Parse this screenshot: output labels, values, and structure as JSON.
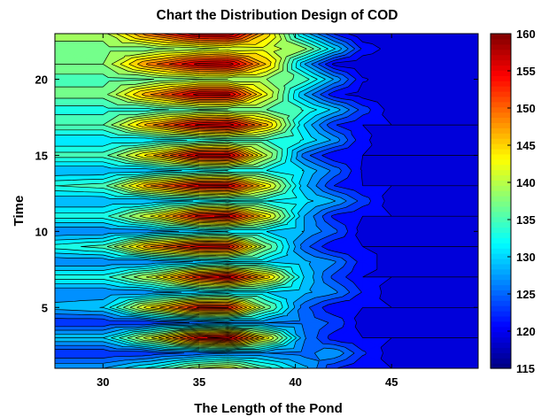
{
  "chart_data": {
    "type": "heatmap",
    "subtype": "filled-contour",
    "title": "Chart the Distribution Design of COD",
    "xlabel": "The Length of the Pond",
    "ylabel": "Time",
    "xlim": [
      27.5,
      49.5
    ],
    "ylim": [
      1,
      23
    ],
    "xticks": [
      30,
      35,
      40,
      45
    ],
    "yticks": [
      5,
      10,
      15,
      20
    ],
    "colorbar": {
      "range": [
        115,
        160
      ],
      "ticks": [
        115,
        120,
        125,
        130,
        135,
        140,
        145,
        150,
        155,
        160
      ],
      "colormap": "jet"
    },
    "contour_levels": [
      116,
      118,
      120,
      122,
      124,
      126,
      128,
      130,
      132,
      134,
      136,
      138,
      140,
      142,
      144,
      146,
      148,
      150,
      152,
      154,
      156,
      158
    ],
    "grid": false,
    "x": [
      27.5,
      30,
      32.5,
      35,
      36.5,
      38.5,
      40.5,
      42,
      43.5,
      45,
      46.5,
      48,
      49.5
    ],
    "y": [
      1,
      2,
      3,
      4,
      5,
      6,
      7,
      8,
      9,
      10,
      11,
      12,
      13,
      14,
      15,
      16,
      17,
      18,
      19,
      20,
      21,
      22,
      23
    ],
    "z": [
      [
        128,
        130,
        133,
        136,
        140,
        143,
        140,
        136,
        132,
        130,
        126,
        122,
        120
      ],
      [
        122,
        123,
        124,
        125,
        126,
        126,
        126,
        125,
        125,
        128,
        125,
        121,
        119
      ],
      [
        130,
        136,
        145,
        152,
        156,
        158,
        155,
        146,
        136,
        129,
        125,
        122,
        120
      ],
      [
        122,
        123,
        124,
        125,
        126,
        126,
        126,
        125,
        125,
        126,
        124,
        121,
        119
      ],
      [
        129,
        134,
        142,
        150,
        154,
        156,
        153,
        144,
        135,
        129,
        125,
        122,
        120
      ],
      [
        126,
        127,
        128,
        129,
        130,
        130,
        130,
        129,
        128,
        127,
        125,
        121,
        119
      ],
      [
        133,
        138,
        146,
        152,
        155,
        157,
        154,
        145,
        136,
        130,
        126,
        122,
        120
      ],
      [
        126,
        127,
        128,
        129,
        130,
        130,
        130,
        129,
        128,
        127,
        125,
        121,
        119
      ],
      [
        133,
        138,
        146,
        152,
        155,
        156,
        154,
        145,
        136,
        130,
        126,
        122,
        120
      ],
      [
        126,
        127,
        128,
        129,
        130,
        130,
        130,
        129,
        128,
        127,
        125,
        121,
        119
      ],
      [
        133,
        139,
        147,
        153,
        156,
        157,
        155,
        146,
        137,
        130,
        126,
        122,
        120
      ],
      [
        128,
        129,
        130,
        131,
        132,
        132,
        132,
        131,
        130,
        128,
        125,
        121,
        119
      ],
      [
        134,
        139,
        147,
        153,
        156,
        157,
        155,
        146,
        137,
        130,
        126,
        122,
        120
      ],
      [
        128,
        129,
        130,
        131,
        132,
        132,
        132,
        131,
        130,
        128,
        125,
        121,
        119
      ],
      [
        135,
        140,
        148,
        154,
        157,
        158,
        156,
        147,
        138,
        131,
        126,
        122,
        120
      ],
      [
        130,
        131,
        132,
        133,
        134,
        134,
        134,
        133,
        131,
        129,
        126,
        121,
        119
      ],
      [
        136,
        141,
        148,
        154,
        157,
        158,
        156,
        147,
        138,
        131,
        126,
        122,
        120
      ],
      [
        133,
        134,
        135,
        136,
        136,
        136,
        136,
        135,
        133,
        130,
        127,
        122,
        119
      ],
      [
        137,
        142,
        149,
        155,
        157,
        158,
        156,
        148,
        139,
        131,
        127,
        122,
        119
      ],
      [
        135,
        136,
        137,
        138,
        138,
        138,
        138,
        137,
        135,
        131,
        127,
        122,
        119
      ],
      [
        138,
        143,
        150,
        155,
        157,
        158,
        156,
        148,
        139,
        131,
        127,
        123,
        118
      ],
      [
        137,
        138,
        139,
        140,
        141,
        141,
        141,
        140,
        137,
        132,
        127,
        122,
        119
      ],
      [
        139,
        144,
        151,
        156,
        158,
        159,
        157,
        149,
        140,
        132,
        127,
        123,
        118
      ]
    ]
  }
}
